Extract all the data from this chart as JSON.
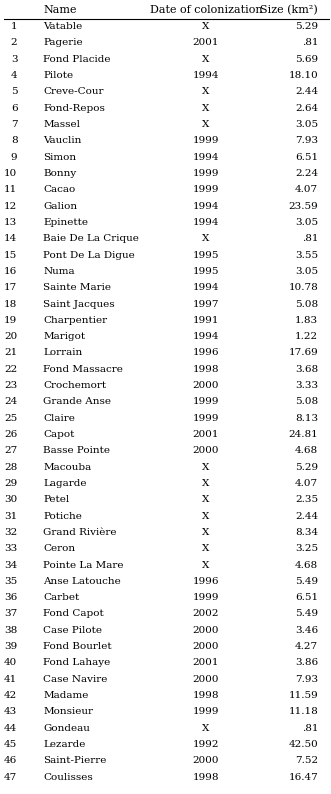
{
  "headers": [
    "",
    "Name",
    "Date of colonization",
    "Size (km²)"
  ],
  "rows": [
    [
      "1",
      "Vatable",
      "X",
      "5.29"
    ],
    [
      "2",
      "Pagerie",
      "2001",
      ".81"
    ],
    [
      "3",
      "Fond Placide",
      "X",
      "5.69"
    ],
    [
      "4",
      "Pilote",
      "1994",
      "18.10"
    ],
    [
      "5",
      "Creve-Cour",
      "X",
      "2.44"
    ],
    [
      "6",
      "Fond-Repos",
      "X",
      "2.64"
    ],
    [
      "7",
      "Massel",
      "X",
      "3.05"
    ],
    [
      "8",
      "Vauclin",
      "1999",
      "7.93"
    ],
    [
      "9",
      "Simon",
      "1994",
      "6.51"
    ],
    [
      "10",
      "Bonny",
      "1999",
      "2.24"
    ],
    [
      "11",
      "Cacao",
      "1999",
      "4.07"
    ],
    [
      "12",
      "Galion",
      "1994",
      "23.59"
    ],
    [
      "13",
      "Epinette",
      "1994",
      "3.05"
    ],
    [
      "14",
      "Baie De La Crique",
      "X",
      ".81"
    ],
    [
      "15",
      "Pont De La Digue",
      "1995",
      "3.55"
    ],
    [
      "16",
      "Numa",
      "1995",
      "3.05"
    ],
    [
      "17",
      "Sainte Marie",
      "1994",
      "10.78"
    ],
    [
      "18",
      "Saint Jacques",
      "1997",
      "5.08"
    ],
    [
      "19",
      "Charpentier",
      "1991",
      "1.83"
    ],
    [
      "20",
      "Marigot",
      "1994",
      "1.22"
    ],
    [
      "21",
      "Lorrain",
      "1996",
      "17.69"
    ],
    [
      "22",
      "Fond Massacre",
      "1998",
      "3.68"
    ],
    [
      "23",
      "Crochemort",
      "2000",
      "3.33"
    ],
    [
      "24",
      "Grande Anse",
      "1999",
      "5.08"
    ],
    [
      "25",
      "Claire",
      "1999",
      "8.13"
    ],
    [
      "26",
      "Capot",
      "2001",
      "24.81"
    ],
    [
      "27",
      "Basse Pointe",
      "2000",
      "4.68"
    ],
    [
      "28",
      "Macouba",
      "X",
      "5.29"
    ],
    [
      "29",
      "Lagarde",
      "X",
      "4.07"
    ],
    [
      "30",
      "Petel",
      "X",
      "2.35"
    ],
    [
      "31",
      "Potiche",
      "X",
      "2.44"
    ],
    [
      "32",
      "Grand Rivière",
      "X",
      "8.34"
    ],
    [
      "33",
      "Ceron",
      "X",
      "3.25"
    ],
    [
      "34",
      "Pointe La Mare",
      "X",
      "4.68"
    ],
    [
      "35",
      "Anse Latouche",
      "1996",
      "5.49"
    ],
    [
      "36",
      "Carbet",
      "1999",
      "6.51"
    ],
    [
      "37",
      "Fond Capot",
      "2002",
      "5.49"
    ],
    [
      "38",
      "Case Pilote",
      "2000",
      "3.46"
    ],
    [
      "39",
      "Fond Bourlet",
      "2000",
      "4.27"
    ],
    [
      "40",
      "Fond Lahaye",
      "2001",
      "3.86"
    ],
    [
      "41",
      "Case Navire",
      "2000",
      "7.93"
    ],
    [
      "42",
      "Madame",
      "1998",
      "11.59"
    ],
    [
      "43",
      "Monsieur",
      "1999",
      "11.18"
    ],
    [
      "44",
      "Gondeau",
      "X",
      ".81"
    ],
    [
      "45",
      "Lezarde",
      "1992",
      "42.50"
    ],
    [
      "46",
      "Saint-Pierre",
      "2000",
      "7.52"
    ],
    [
      "47",
      "Coulisses",
      "1998",
      "16.47"
    ]
  ],
  "bg_color": "#ffffff",
  "header_line_color": "#000000",
  "text_color": "#000000",
  "font_size": 7.5,
  "header_font_size": 8.0
}
